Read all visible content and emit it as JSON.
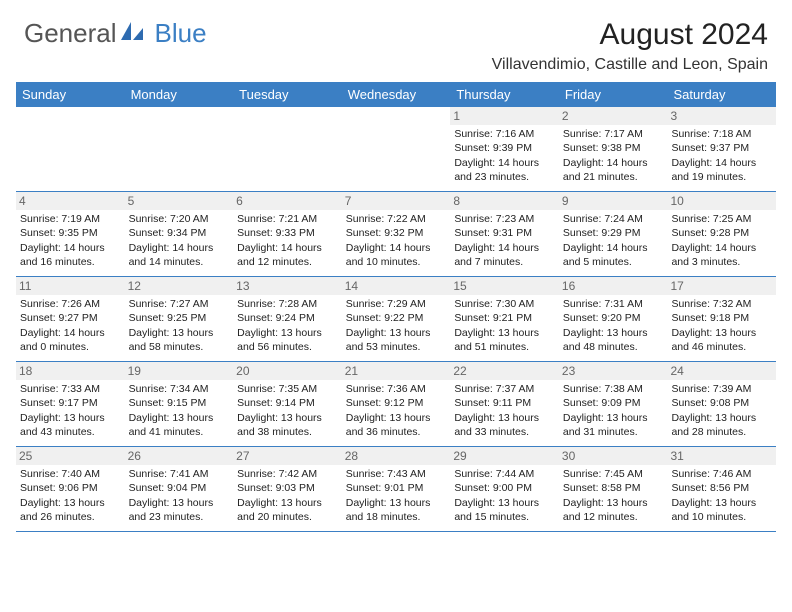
{
  "logo": {
    "text1": "General",
    "text2": "Blue"
  },
  "title": "August 2024",
  "location": "Villavendimio, Castille and Leon, Spain",
  "dayHeaders": [
    "Sunday",
    "Monday",
    "Tuesday",
    "Wednesday",
    "Thursday",
    "Friday",
    "Saturday"
  ],
  "colors": {
    "headerBg": "#3b7fc4",
    "headerText": "#ffffff",
    "border": "#3b7fc4",
    "dayNumBg": "#f0f0f0",
    "dayNumText": "#666666"
  },
  "weeks": [
    [
      {
        "blank": true
      },
      {
        "blank": true
      },
      {
        "blank": true
      },
      {
        "blank": true
      },
      {
        "num": "1",
        "sunrise": "Sunrise: 7:16 AM",
        "sunset": "Sunset: 9:39 PM",
        "daylight": "Daylight: 14 hours and 23 minutes."
      },
      {
        "num": "2",
        "sunrise": "Sunrise: 7:17 AM",
        "sunset": "Sunset: 9:38 PM",
        "daylight": "Daylight: 14 hours and 21 minutes."
      },
      {
        "num": "3",
        "sunrise": "Sunrise: 7:18 AM",
        "sunset": "Sunset: 9:37 PM",
        "daylight": "Daylight: 14 hours and 19 minutes."
      }
    ],
    [
      {
        "num": "4",
        "sunrise": "Sunrise: 7:19 AM",
        "sunset": "Sunset: 9:35 PM",
        "daylight": "Daylight: 14 hours and 16 minutes."
      },
      {
        "num": "5",
        "sunrise": "Sunrise: 7:20 AM",
        "sunset": "Sunset: 9:34 PM",
        "daylight": "Daylight: 14 hours and 14 minutes."
      },
      {
        "num": "6",
        "sunrise": "Sunrise: 7:21 AM",
        "sunset": "Sunset: 9:33 PM",
        "daylight": "Daylight: 14 hours and 12 minutes."
      },
      {
        "num": "7",
        "sunrise": "Sunrise: 7:22 AM",
        "sunset": "Sunset: 9:32 PM",
        "daylight": "Daylight: 14 hours and 10 minutes."
      },
      {
        "num": "8",
        "sunrise": "Sunrise: 7:23 AM",
        "sunset": "Sunset: 9:31 PM",
        "daylight": "Daylight: 14 hours and 7 minutes."
      },
      {
        "num": "9",
        "sunrise": "Sunrise: 7:24 AM",
        "sunset": "Sunset: 9:29 PM",
        "daylight": "Daylight: 14 hours and 5 minutes."
      },
      {
        "num": "10",
        "sunrise": "Sunrise: 7:25 AM",
        "sunset": "Sunset: 9:28 PM",
        "daylight": "Daylight: 14 hours and 3 minutes."
      }
    ],
    [
      {
        "num": "11",
        "sunrise": "Sunrise: 7:26 AM",
        "sunset": "Sunset: 9:27 PM",
        "daylight": "Daylight: 14 hours and 0 minutes."
      },
      {
        "num": "12",
        "sunrise": "Sunrise: 7:27 AM",
        "sunset": "Sunset: 9:25 PM",
        "daylight": "Daylight: 13 hours and 58 minutes."
      },
      {
        "num": "13",
        "sunrise": "Sunrise: 7:28 AM",
        "sunset": "Sunset: 9:24 PM",
        "daylight": "Daylight: 13 hours and 56 minutes."
      },
      {
        "num": "14",
        "sunrise": "Sunrise: 7:29 AM",
        "sunset": "Sunset: 9:22 PM",
        "daylight": "Daylight: 13 hours and 53 minutes."
      },
      {
        "num": "15",
        "sunrise": "Sunrise: 7:30 AM",
        "sunset": "Sunset: 9:21 PM",
        "daylight": "Daylight: 13 hours and 51 minutes."
      },
      {
        "num": "16",
        "sunrise": "Sunrise: 7:31 AM",
        "sunset": "Sunset: 9:20 PM",
        "daylight": "Daylight: 13 hours and 48 minutes."
      },
      {
        "num": "17",
        "sunrise": "Sunrise: 7:32 AM",
        "sunset": "Sunset: 9:18 PM",
        "daylight": "Daylight: 13 hours and 46 minutes."
      }
    ],
    [
      {
        "num": "18",
        "sunrise": "Sunrise: 7:33 AM",
        "sunset": "Sunset: 9:17 PM",
        "daylight": "Daylight: 13 hours and 43 minutes."
      },
      {
        "num": "19",
        "sunrise": "Sunrise: 7:34 AM",
        "sunset": "Sunset: 9:15 PM",
        "daylight": "Daylight: 13 hours and 41 minutes."
      },
      {
        "num": "20",
        "sunrise": "Sunrise: 7:35 AM",
        "sunset": "Sunset: 9:14 PM",
        "daylight": "Daylight: 13 hours and 38 minutes."
      },
      {
        "num": "21",
        "sunrise": "Sunrise: 7:36 AM",
        "sunset": "Sunset: 9:12 PM",
        "daylight": "Daylight: 13 hours and 36 minutes."
      },
      {
        "num": "22",
        "sunrise": "Sunrise: 7:37 AM",
        "sunset": "Sunset: 9:11 PM",
        "daylight": "Daylight: 13 hours and 33 minutes."
      },
      {
        "num": "23",
        "sunrise": "Sunrise: 7:38 AM",
        "sunset": "Sunset: 9:09 PM",
        "daylight": "Daylight: 13 hours and 31 minutes."
      },
      {
        "num": "24",
        "sunrise": "Sunrise: 7:39 AM",
        "sunset": "Sunset: 9:08 PM",
        "daylight": "Daylight: 13 hours and 28 minutes."
      }
    ],
    [
      {
        "num": "25",
        "sunrise": "Sunrise: 7:40 AM",
        "sunset": "Sunset: 9:06 PM",
        "daylight": "Daylight: 13 hours and 26 minutes."
      },
      {
        "num": "26",
        "sunrise": "Sunrise: 7:41 AM",
        "sunset": "Sunset: 9:04 PM",
        "daylight": "Daylight: 13 hours and 23 minutes."
      },
      {
        "num": "27",
        "sunrise": "Sunrise: 7:42 AM",
        "sunset": "Sunset: 9:03 PM",
        "daylight": "Daylight: 13 hours and 20 minutes."
      },
      {
        "num": "28",
        "sunrise": "Sunrise: 7:43 AM",
        "sunset": "Sunset: 9:01 PM",
        "daylight": "Daylight: 13 hours and 18 minutes."
      },
      {
        "num": "29",
        "sunrise": "Sunrise: 7:44 AM",
        "sunset": "Sunset: 9:00 PM",
        "daylight": "Daylight: 13 hours and 15 minutes."
      },
      {
        "num": "30",
        "sunrise": "Sunrise: 7:45 AM",
        "sunset": "Sunset: 8:58 PM",
        "daylight": "Daylight: 13 hours and 12 minutes."
      },
      {
        "num": "31",
        "sunrise": "Sunrise: 7:46 AM",
        "sunset": "Sunset: 8:56 PM",
        "daylight": "Daylight: 13 hours and 10 minutes."
      }
    ]
  ]
}
